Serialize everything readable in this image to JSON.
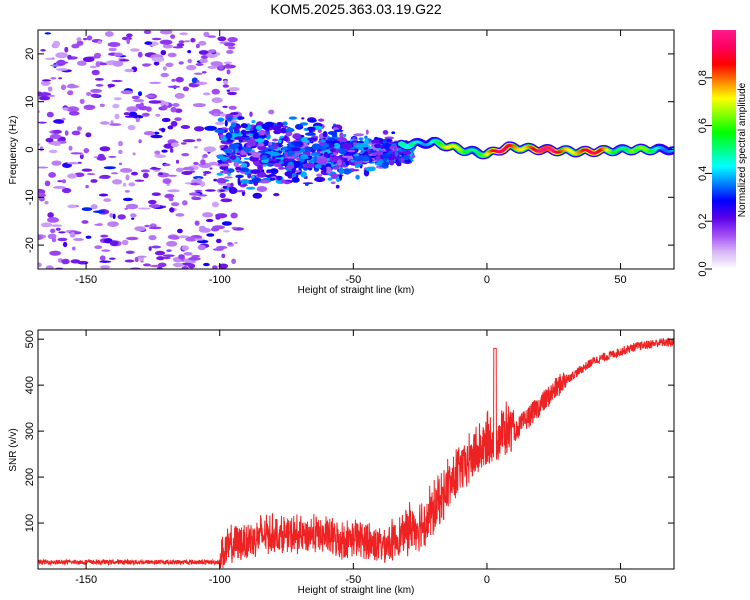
{
  "title": "KOM5.2025.363.03.19.G22",
  "chart_data": [
    {
      "type": "heatmap",
      "xlabel": "Height of straight line (km)",
      "ylabel": "Frequency (Hz)",
      "xlim": [
        -168,
        70
      ],
      "ylim": [
        -25,
        25
      ],
      "xticks": [
        -150,
        -100,
        -50,
        0,
        50
      ],
      "yticks": [
        -20,
        -10,
        0,
        10,
        20
      ],
      "xtick_labels": [
        "-150",
        "-100",
        "-50",
        "0",
        "50"
      ],
      "ytick_labels": [
        "-20",
        "-10",
        "0",
        "10",
        "20"
      ],
      "colorbar": {
        "label": "Normalized spectral amplitude",
        "range": [
          0,
          1
        ],
        "ticks": [
          0.0,
          0.2,
          0.4,
          0.6,
          0.8
        ],
        "tick_labels": [
          "0.0",
          "0.2",
          "0.4",
          "0.6",
          "0.8"
        ],
        "colors": [
          "#ffffff",
          "#d7b7f7",
          "#a24cf5",
          "#5a00e8",
          "#0000ff",
          "#0080ff",
          "#00ffff",
          "#00ff80",
          "#00ff00",
          "#80ff00",
          "#ffff00",
          "#ff8000",
          "#ff0000",
          "#ff0060",
          "#ff1a8c"
        ]
      },
      "description_points": [
        {
          "x": -165,
          "y": 20,
          "amp": 0.1
        },
        {
          "x": -140,
          "y": 14,
          "amp": 0.1
        },
        {
          "x": -132,
          "y": 7,
          "amp": 0.25
        },
        {
          "x": -110,
          "y": -5,
          "amp": 0.2
        },
        {
          "x": -80,
          "y": 0,
          "amp": 0.3
        },
        {
          "x": -60,
          "y": -1,
          "amp": 0.3
        },
        {
          "x": -40,
          "y": 1,
          "amp": 0.35
        },
        {
          "x": -30,
          "y": 1,
          "amp": 0.45
        },
        {
          "x": -20,
          "y": 1.5,
          "amp": 0.55
        },
        {
          "x": -10,
          "y": 0,
          "amp": 0.6
        },
        {
          "x": 0,
          "y": -1,
          "amp": 0.7
        },
        {
          "x": 8,
          "y": 0.5,
          "amp": 0.85
        },
        {
          "x": 20,
          "y": 0,
          "amp": 0.9
        },
        {
          "x": 35,
          "y": -0.5,
          "amp": 0.85
        },
        {
          "x": 55,
          "y": 0,
          "amp": 0.6
        }
      ]
    },
    {
      "type": "line",
      "xlabel": "Height of straight line (km)",
      "ylabel": "SNR (v/v)",
      "xlim": [
        -168,
        70
      ],
      "ylim": [
        0,
        520
      ],
      "xticks": [
        -150,
        -100,
        -50,
        0,
        50
      ],
      "yticks": [
        100,
        200,
        300,
        400,
        500
      ],
      "xtick_labels": [
        "-150",
        "-100",
        "-50",
        "0",
        "50"
      ],
      "ytick_labels": [
        "100",
        "200",
        "300",
        "400",
        "500"
      ],
      "series": [
        {
          "name": "SNR",
          "color": "#ee2222",
          "x": [
            -168,
            -150,
            -120,
            -105,
            -100,
            -95,
            -90,
            -85,
            -80,
            -75,
            -70,
            -65,
            -60,
            -55,
            -50,
            -45,
            -40,
            -35,
            -30,
            -25,
            -20,
            -15,
            -10,
            -5,
            0,
            5,
            10,
            15,
            20,
            25,
            30,
            35,
            40,
            45,
            50,
            55,
            60,
            65,
            70
          ],
          "y": [
            15,
            15,
            15,
            15,
            20,
            40,
            50,
            60,
            65,
            60,
            60,
            65,
            60,
            50,
            55,
            50,
            40,
            50,
            70,
            80,
            110,
            160,
            200,
            230,
            260,
            280,
            290,
            320,
            350,
            380,
            410,
            430,
            450,
            460,
            470,
            480,
            485,
            490,
            490
          ]
        }
      ]
    }
  ]
}
